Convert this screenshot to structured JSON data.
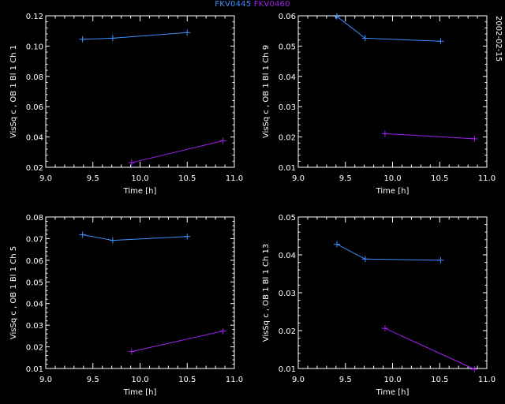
{
  "legend": {
    "items": [
      {
        "label": "FKV0445",
        "color": "#3a8fff"
      },
      {
        "label": "FKV0460",
        "color": "#a020f0"
      }
    ]
  },
  "date_label": "2002-02-15",
  "colors": {
    "background": "#000000",
    "axes": "#ffffff"
  },
  "chart_data": [
    {
      "type": "line",
      "xlabel": "Time [h]",
      "ylabel": "VisSq c , OB 1 Bl 1 Ch 1",
      "xlim": [
        9.0,
        11.0
      ],
      "ylim": [
        0.02,
        0.12
      ],
      "xticks": [
        9.0,
        9.5,
        10.0,
        10.5,
        11.0
      ],
      "yticks": [
        0.02,
        0.04,
        0.06,
        0.08,
        0.1,
        0.12
      ],
      "series": [
        {
          "name": "FKV0445",
          "x": [
            9.39,
            9.71,
            10.5
          ],
          "y": [
            0.1045,
            0.1052,
            0.1089
          ]
        },
        {
          "name": "FKV0460",
          "x": [
            9.91,
            10.88
          ],
          "y": [
            0.023,
            0.0375
          ]
        }
      ]
    },
    {
      "type": "line",
      "xlabel": "Time [h]",
      "ylabel": "VisSq c , OB 1 Bl 1 Ch 9",
      "xlim": [
        9.0,
        11.0
      ],
      "ylim": [
        0.01,
        0.06
      ],
      "xticks": [
        9.0,
        9.5,
        10.0,
        10.5,
        11.0
      ],
      "yticks": [
        0.01,
        0.02,
        0.03,
        0.04,
        0.05,
        0.06
      ],
      "series": [
        {
          "name": "FKV0445",
          "x": [
            9.41,
            9.71,
            10.51
          ],
          "y": [
            0.0598,
            0.0526,
            0.0516
          ]
        },
        {
          "name": "FKV0460",
          "x": [
            9.92,
            10.87
          ],
          "y": [
            0.0211,
            0.0194
          ]
        }
      ]
    },
    {
      "type": "line",
      "xlabel": "Time [h]",
      "ylabel": "VisSq c , OB 1 Bl 1 Ch 5",
      "xlim": [
        9.0,
        11.0
      ],
      "ylim": [
        0.01,
        0.08
      ],
      "xticks": [
        9.0,
        9.5,
        10.0,
        10.5,
        11.0
      ],
      "yticks": [
        0.01,
        0.02,
        0.03,
        0.04,
        0.05,
        0.06,
        0.07,
        0.08
      ],
      "series": [
        {
          "name": "FKV0445",
          "x": [
            9.39,
            9.71,
            10.5
          ],
          "y": [
            0.0718,
            0.0692,
            0.071
          ]
        },
        {
          "name": "FKV0460",
          "x": [
            9.91,
            10.88
          ],
          "y": [
            0.0178,
            0.0273
          ]
        }
      ]
    },
    {
      "type": "line",
      "xlabel": "Time [h]",
      "ylabel": "VisSq c , OB 1 Bl 1 Ch 13",
      "xlim": [
        9.0,
        11.0
      ],
      "ylim": [
        0.01,
        0.05
      ],
      "xticks": [
        9.0,
        9.5,
        10.0,
        10.5,
        11.0
      ],
      "yticks": [
        0.01,
        0.02,
        0.03,
        0.04,
        0.05
      ],
      "series": [
        {
          "name": "FKV0445",
          "x": [
            9.41,
            9.71,
            10.51
          ],
          "y": [
            0.0428,
            0.0389,
            0.0386
          ]
        },
        {
          "name": "FKV0460",
          "x": [
            9.92,
            10.87
          ],
          "y": [
            0.0206,
            0.0098
          ]
        }
      ]
    }
  ]
}
